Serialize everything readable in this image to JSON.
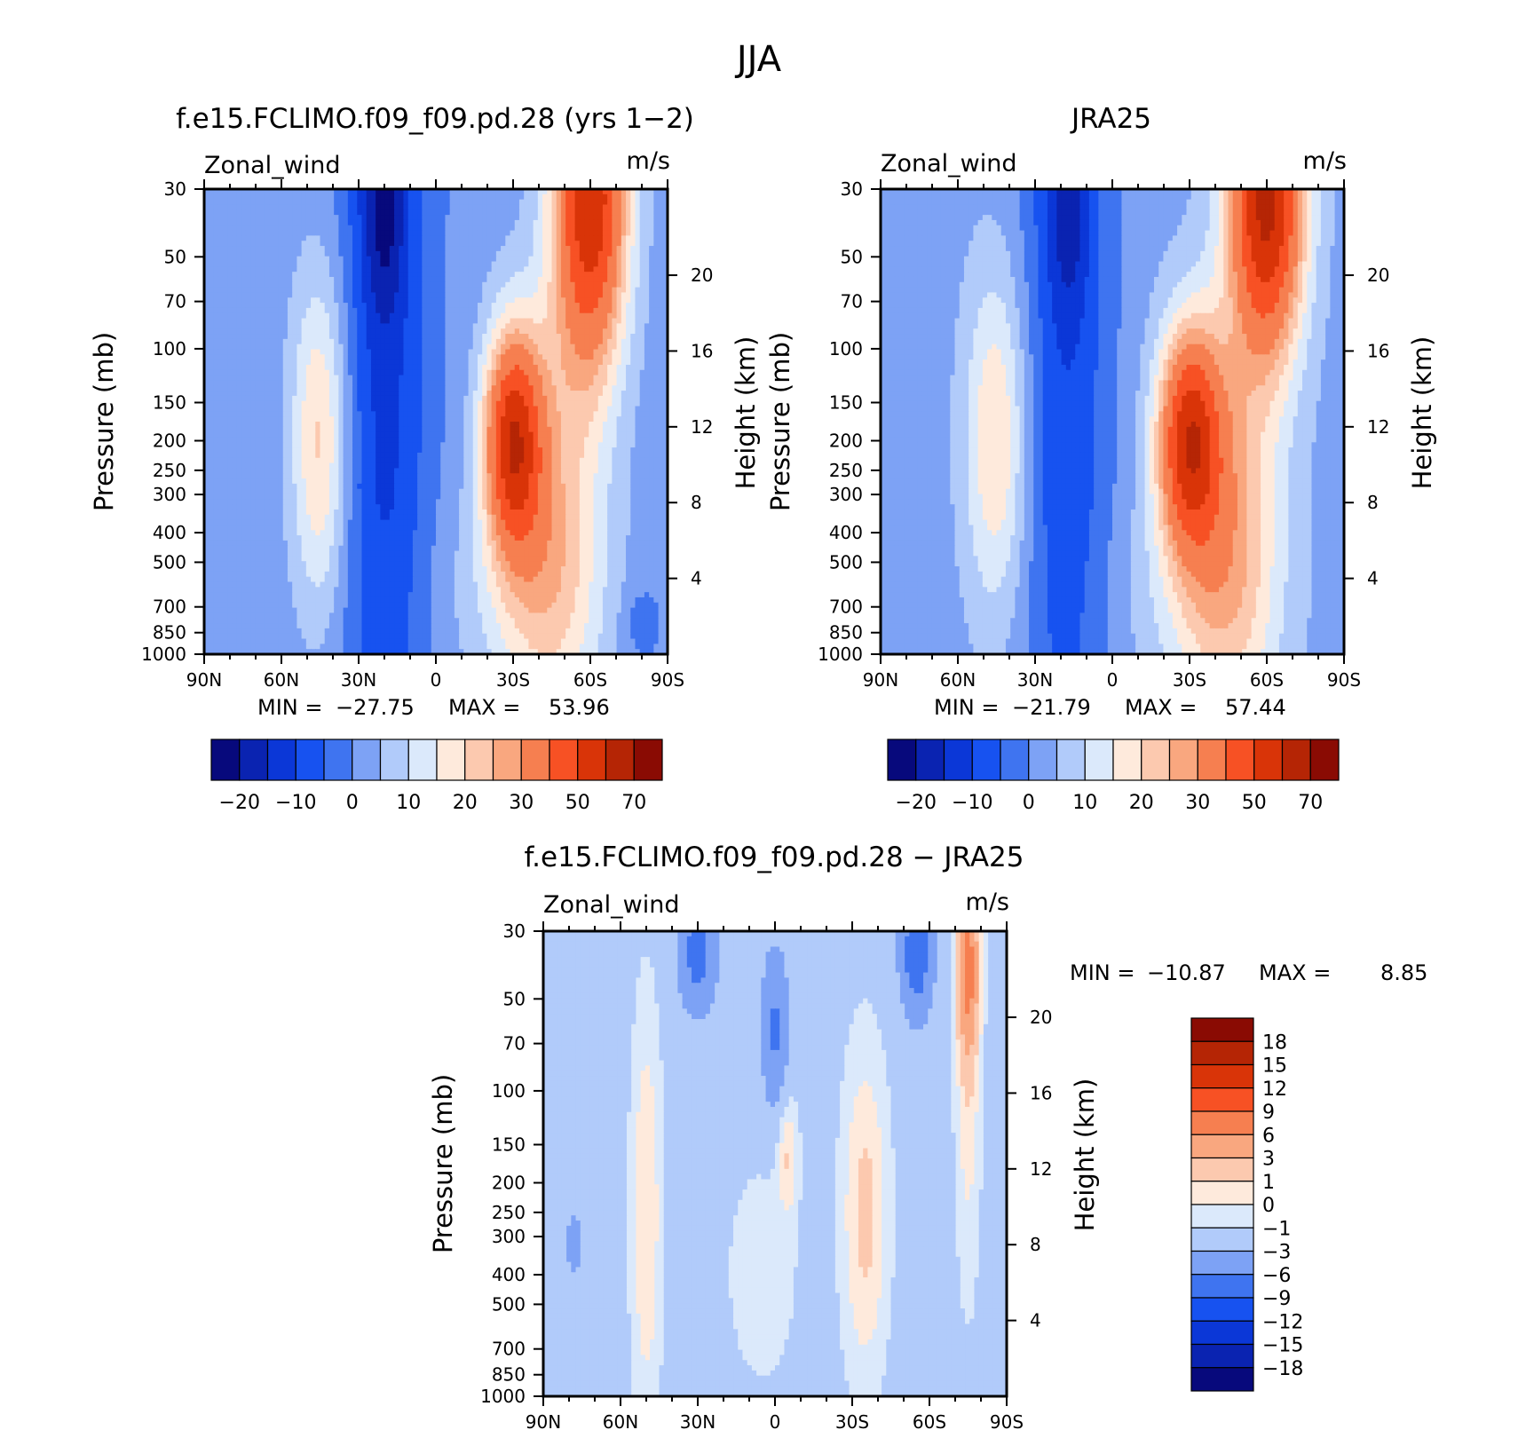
{
  "figure": {
    "title": "JJA"
  },
  "chart_data": [
    {
      "type": "heatmap",
      "title": "f.e15.FCLIMO.f09_f09.pd.28 (yrs 1−2)",
      "left_label": "Zonal_wind",
      "right_label": "m/s",
      "ylabel": "Pressure (mb)",
      "y2label": "Height (km)",
      "x_ticks": [
        "90N",
        "60N",
        "30N",
        "0",
        "30S",
        "60S",
        "90S"
      ],
      "y_ticks": [
        30,
        50,
        70,
        100,
        150,
        200,
        250,
        300,
        400,
        500,
        700,
        850,
        1000
      ],
      "y2_ticks": [
        20,
        16,
        12,
        8,
        4
      ],
      "ylim": [
        1000,
        30
      ],
      "y_scale": "log",
      "stats": {
        "min_label": "MIN =",
        "min": "−27.75",
        "max_label": "MAX =",
        "max": "53.96"
      },
      "levels": [
        -25,
        -20,
        -15,
        -10,
        -5,
        0,
        5,
        10,
        15,
        20,
        25,
        30,
        40,
        50,
        60,
        70,
        80
      ],
      "colorbar_labels": [
        "−20",
        "−10",
        "0",
        "10",
        "20",
        "30",
        "50",
        "70"
      ],
      "colors": [
        "#07097c",
        "#0a23b1",
        "#0b37d7",
        "#1752f0",
        "#3f74f0",
        "#7da2f5",
        "#b1cbfa",
        "#dbe9fb",
        "#feeadc",
        "#fcc9af",
        "#f9a77f",
        "#f67f50",
        "#f75124",
        "#d93408",
        "#b52505",
        "#8a0b03"
      ]
    },
    {
      "type": "heatmap",
      "title": "JRA25",
      "left_label": "Zonal_wind",
      "right_label": "m/s",
      "ylabel": "Pressure (mb)",
      "y2label": "Height (km)",
      "x_ticks": [
        "90N",
        "60N",
        "30N",
        "0",
        "30S",
        "60S",
        "90S"
      ],
      "y_ticks": [
        30,
        50,
        70,
        100,
        150,
        200,
        250,
        300,
        400,
        500,
        700,
        850,
        1000
      ],
      "y2_ticks": [
        20,
        16,
        12,
        8,
        4
      ],
      "ylim": [
        1000,
        30
      ],
      "y_scale": "log",
      "stats": {
        "min_label": "MIN =",
        "min": "−21.79",
        "max_label": "MAX =",
        "max": "57.44"
      },
      "levels": [
        -25,
        -20,
        -15,
        -10,
        -5,
        0,
        5,
        10,
        15,
        20,
        25,
        30,
        40,
        50,
        60,
        70,
        80
      ],
      "colorbar_labels": [
        "−20",
        "−10",
        "0",
        "10",
        "20",
        "30",
        "50",
        "70"
      ],
      "colors": [
        "#07097c",
        "#0a23b1",
        "#0b37d7",
        "#1752f0",
        "#3f74f0",
        "#7da2f5",
        "#b1cbfa",
        "#dbe9fb",
        "#feeadc",
        "#fcc9af",
        "#f9a77f",
        "#f67f50",
        "#f75124",
        "#d93408",
        "#b52505",
        "#8a0b03"
      ]
    },
    {
      "type": "heatmap",
      "title": "f.e15.FCLIMO.f09_f09.pd.28 − JRA25",
      "left_label": "Zonal_wind",
      "right_label": "m/s",
      "ylabel": "Pressure (mb)",
      "y2label": "Height (km)",
      "x_ticks": [
        "90N",
        "60N",
        "30N",
        "0",
        "30S",
        "60S",
        "90S"
      ],
      "y_ticks": [
        30,
        50,
        70,
        100,
        150,
        200,
        250,
        300,
        400,
        500,
        700,
        850,
        1000
      ],
      "y2_ticks": [
        20,
        16,
        12,
        8,
        4
      ],
      "ylim": [
        1000,
        30
      ],
      "y_scale": "log",
      "stats": {
        "min_label": "MIN =",
        "min": "−10.87",
        "max_label": "MAX =",
        "max": "8.85"
      },
      "levels": [
        -21,
        -18,
        -15,
        -12,
        -9,
        -6,
        -3,
        -1,
        0,
        1,
        3,
        6,
        9,
        12,
        15,
        18,
        21
      ],
      "colorbar_labels": [
        "18",
        "15",
        "12",
        "9",
        "6",
        "3",
        "1",
        "0",
        "−1",
        "−3",
        "−6",
        "−9",
        "−12",
        "−15",
        "−18"
      ],
      "colors": [
        "#07097c",
        "#0a23b1",
        "#0b37d7",
        "#1752f0",
        "#3f74f0",
        "#7da2f5",
        "#b1cbfa",
        "#dbe9fb",
        "#feeadc",
        "#fcc9af",
        "#f9a77f",
        "#f67f50",
        "#f75124",
        "#d93408",
        "#b52505",
        "#8a0b03"
      ]
    }
  ]
}
